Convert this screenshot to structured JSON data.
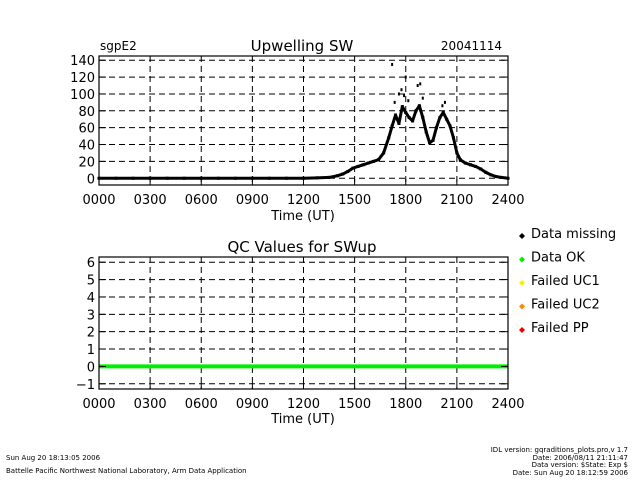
{
  "chart_data": [
    {
      "type": "scatter",
      "site_label": "sgpE2",
      "title": "Upwelling SW",
      "date_label": "20041114",
      "xlabel": "Time (UT)",
      "ylabel": "",
      "xlim": [
        0,
        24
      ],
      "ylim": [
        -8,
        145
      ],
      "x_ticks": [
        0,
        3,
        6,
        9,
        12,
        15,
        18,
        21,
        24
      ],
      "x_tick_labels": [
        "0000",
        "0300",
        "0600",
        "0900",
        "1200",
        "1500",
        "1800",
        "2100",
        "2400"
      ],
      "y_ticks": [
        0,
        20,
        40,
        60,
        80,
        100,
        120,
        140
      ],
      "y_tick_labels": [
        "0",
        "20",
        "40",
        "60",
        "80",
        "100",
        "120",
        "140"
      ],
      "grid": true,
      "series": [
        {
          "color": "#000000",
          "x": [
            0,
            1,
            2,
            3,
            4,
            5,
            6,
            7,
            8,
            9,
            10,
            11,
            12,
            12.8,
            13.5,
            14,
            14.3,
            14.6,
            14.9,
            15.2,
            15.5,
            15.8,
            16.1,
            16.4,
            16.7,
            17.0,
            17.2,
            17.4,
            17.6,
            17.8,
            18.0,
            18.2,
            18.4,
            18.6,
            18.8,
            19.0,
            19.2,
            19.4,
            19.6,
            19.8,
            20.0,
            20.2,
            20.4,
            20.6,
            20.8,
            21.0,
            21.2,
            21.5,
            21.8,
            22.1,
            22.4,
            22.7,
            23.0,
            23.3,
            23.6,
            24.0
          ],
          "y": [
            0,
            0,
            0,
            0,
            0,
            0,
            0,
            0,
            0,
            0,
            0,
            0,
            0,
            0.5,
            1,
            3,
            5,
            8,
            12,
            14,
            16,
            18,
            20,
            22,
            30,
            48,
            62,
            75,
            65,
            85,
            78,
            72,
            68,
            80,
            86,
            72,
            55,
            42,
            45,
            60,
            72,
            78,
            70,
            62,
            48,
            30,
            22,
            18,
            16,
            14,
            11,
            7,
            4,
            2,
            1,
            0
          ]
        },
        {
          "color": "#000000",
          "x": [
            17.2,
            17.35,
            17.6,
            17.75,
            17.9,
            18.0,
            18.15,
            18.7,
            18.85,
            19.0,
            20.15,
            20.3
          ],
          "y": [
            135,
            90,
            100,
            105,
            98,
            120,
            92,
            110,
            112,
            95,
            86,
            90
          ]
        }
      ]
    },
    {
      "type": "line",
      "title": "QC Values for SWup",
      "xlabel": "Time (UT)",
      "ylabel": "",
      "xlim": [
        0,
        24
      ],
      "ylim": [
        -1.3,
        6.3
      ],
      "x_ticks": [
        0,
        3,
        6,
        9,
        12,
        15,
        18,
        21,
        24
      ],
      "x_tick_labels": [
        "0000",
        "0300",
        "0600",
        "0900",
        "1200",
        "1500",
        "1800",
        "2100",
        "2400"
      ],
      "y_ticks": [
        -1,
        0,
        1,
        2,
        3,
        4,
        5,
        6
      ],
      "y_tick_labels": [
        "−1",
        "0",
        "1",
        "2",
        "3",
        "4",
        "5",
        "6"
      ],
      "grid": true,
      "series": [
        {
          "color": "#00ee00",
          "x": [
            0,
            24
          ],
          "y": [
            0,
            0
          ]
        }
      ]
    }
  ],
  "legend": {
    "placement": "right",
    "items": [
      {
        "label": "Data missing",
        "color": "#000000"
      },
      {
        "label": "Data OK",
        "color": "#00ee00"
      },
      {
        "label": "Failed UC1",
        "color": "#ffee00"
      },
      {
        "label": "Failed UC2",
        "color": "#ff8800"
      },
      {
        "label": "Failed PP",
        "color": "#ee0000"
      }
    ]
  },
  "footer": {
    "run_date": "Sun Aug 20 18:13:05 2006",
    "organization": "Battelle Pacific Northwest National Laboratory, Arm Data Application",
    "idl_version": "IDL version: gqraditions_plots.pro,v 1.7",
    "file_date": "Date: 2006/08/11 21:11:47",
    "data_version": "Data version: $State: Exp $",
    "data_date": "Date: Sun Aug 20 18:12:59 2006"
  }
}
